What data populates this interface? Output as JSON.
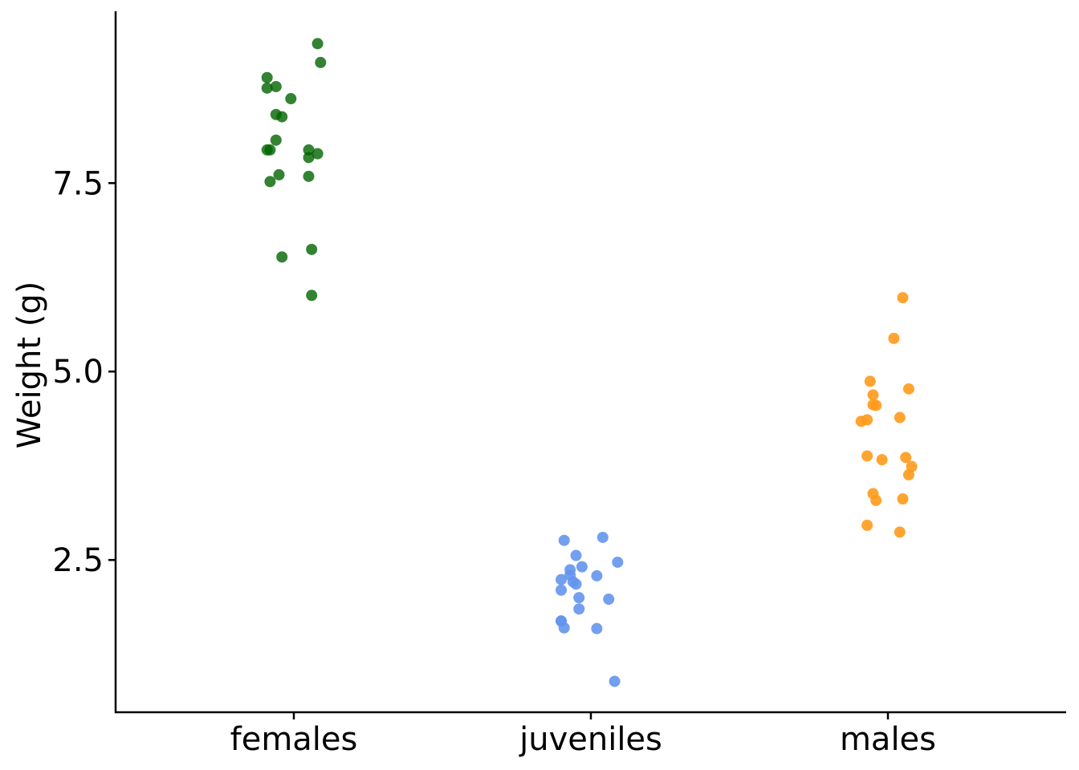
{
  "chart_data": {
    "type": "scatter",
    "title": "",
    "xlabel": "",
    "ylabel": "Weight (g)",
    "categories": [
      "females",
      "juveniles",
      "males"
    ],
    "yticks": [
      2.5,
      5.0,
      7.5
    ],
    "ytick_labels": [
      "2.5",
      "5.0",
      "7.5"
    ],
    "ylim": [
      0.48,
      9.78
    ],
    "xlim": [
      0.4,
      3.6
    ],
    "grid": false,
    "legend": "none",
    "series": [
      {
        "name": "females",
        "color": "#006400",
        "opacity": 0.8,
        "points": [
          {
            "x": 1.08,
            "y": 9.35
          },
          {
            "x": 1.09,
            "y": 9.1
          },
          {
            "x": 0.91,
            "y": 8.9
          },
          {
            "x": 0.91,
            "y": 8.76
          },
          {
            "x": 0.94,
            "y": 8.78
          },
          {
            "x": 0.99,
            "y": 8.62
          },
          {
            "x": 0.94,
            "y": 8.41
          },
          {
            "x": 0.96,
            "y": 8.38
          },
          {
            "x": 0.94,
            "y": 8.07
          },
          {
            "x": 0.91,
            "y": 7.94
          },
          {
            "x": 0.92,
            "y": 7.94
          },
          {
            "x": 1.05,
            "y": 7.94
          },
          {
            "x": 1.08,
            "y": 7.89
          },
          {
            "x": 1.05,
            "y": 7.84
          },
          {
            "x": 0.95,
            "y": 7.61
          },
          {
            "x": 1.05,
            "y": 7.59
          },
          {
            "x": 0.92,
            "y": 7.52
          },
          {
            "x": 1.06,
            "y": 6.62
          },
          {
            "x": 0.96,
            "y": 6.52
          },
          {
            "x": 1.06,
            "y": 6.01
          }
        ]
      },
      {
        "name": "juveniles",
        "color": "#6495ED",
        "opacity": 0.9,
        "points": [
          {
            "x": 1.91,
            "y": 2.76
          },
          {
            "x": 2.04,
            "y": 2.8
          },
          {
            "x": 1.95,
            "y": 2.56
          },
          {
            "x": 2.09,
            "y": 2.47
          },
          {
            "x": 1.93,
            "y": 2.37
          },
          {
            "x": 1.97,
            "y": 2.41
          },
          {
            "x": 1.93,
            "y": 2.3
          },
          {
            "x": 1.9,
            "y": 2.24
          },
          {
            "x": 2.02,
            "y": 2.29
          },
          {
            "x": 1.94,
            "y": 2.21
          },
          {
            "x": 1.95,
            "y": 2.18
          },
          {
            "x": 1.9,
            "y": 2.1
          },
          {
            "x": 1.96,
            "y": 2.0
          },
          {
            "x": 2.06,
            "y": 1.98
          },
          {
            "x": 1.96,
            "y": 1.85
          },
          {
            "x": 1.9,
            "y": 1.69
          },
          {
            "x": 1.9,
            "y": 1.69
          },
          {
            "x": 1.91,
            "y": 1.6
          },
          {
            "x": 2.02,
            "y": 1.59
          },
          {
            "x": 2.08,
            "y": 0.89
          }
        ]
      },
      {
        "name": "males",
        "color": "#FF9A1A",
        "opacity": 0.9,
        "points": [
          {
            "x": 3.05,
            "y": 5.98
          },
          {
            "x": 3.02,
            "y": 5.44
          },
          {
            "x": 2.94,
            "y": 4.87
          },
          {
            "x": 2.95,
            "y": 4.69
          },
          {
            "x": 3.07,
            "y": 4.77
          },
          {
            "x": 2.95,
            "y": 4.56
          },
          {
            "x": 2.96,
            "y": 4.55
          },
          {
            "x": 2.91,
            "y": 4.34
          },
          {
            "x": 2.93,
            "y": 4.36
          },
          {
            "x": 3.04,
            "y": 4.39
          },
          {
            "x": 2.93,
            "y": 3.88
          },
          {
            "x": 2.98,
            "y": 3.83
          },
          {
            "x": 3.06,
            "y": 3.86
          },
          {
            "x": 3.08,
            "y": 3.74
          },
          {
            "x": 3.07,
            "y": 3.63
          },
          {
            "x": 2.95,
            "y": 3.38
          },
          {
            "x": 2.96,
            "y": 3.29
          },
          {
            "x": 3.05,
            "y": 3.31
          },
          {
            "x": 2.93,
            "y": 2.96
          },
          {
            "x": 3.04,
            "y": 2.87
          }
        ]
      }
    ]
  }
}
